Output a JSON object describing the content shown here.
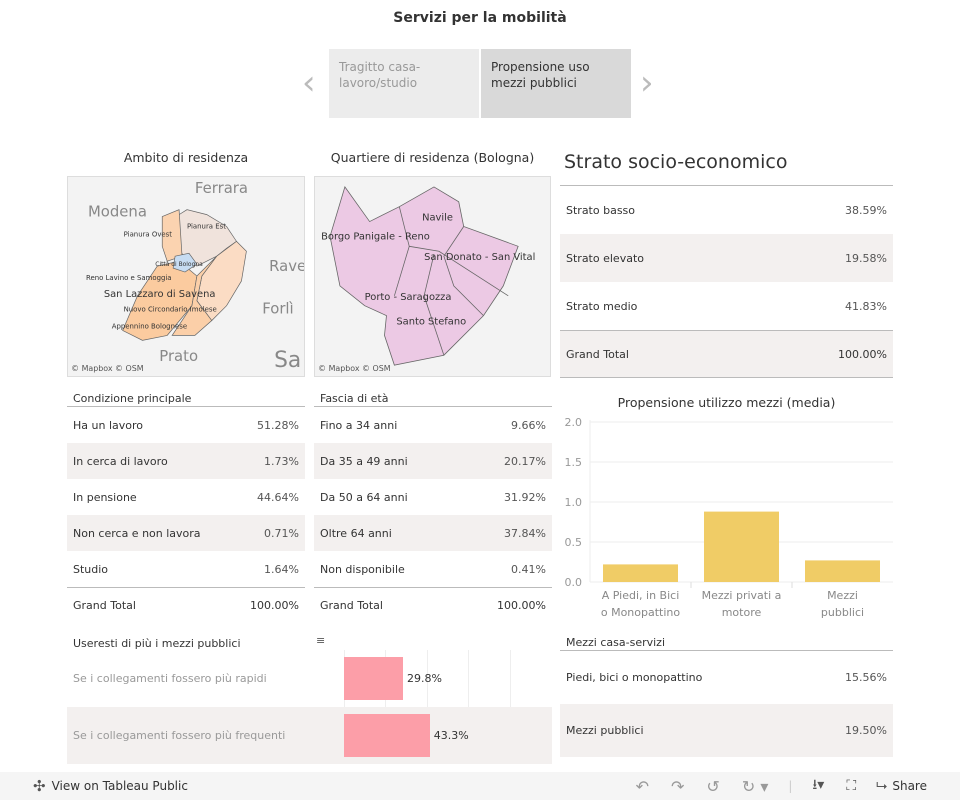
{
  "title": "Servizi per la mobilità",
  "nav": {
    "items": [
      {
        "label": "Tragitto casa-lavoro/studio",
        "active": false
      },
      {
        "label": "Propensione uso mezzi pubblici",
        "active": true
      }
    ]
  },
  "map_ambito": {
    "title": "Ambito di residenza",
    "cities": [
      "Ferrara",
      "Modena",
      "Rave",
      "Forlì",
      "Prato",
      "Sa"
    ],
    "areas": [
      "Pianura Ovest",
      "Pianura Est",
      "Città di Bologna",
      "Reno Lavino e Samoggia",
      "San Lazzaro di Savena",
      "Nuovo Circondario Imolese",
      "Appennino Bolognese"
    ],
    "credits": "© Mapbox  © OSM"
  },
  "map_quartiere": {
    "title": "Quartiere di residenza (Bologna)",
    "areas": [
      "Navile",
      "Borgo Panigale - Reno",
      "San Donato - San Vital",
      "Porto - Saragozza",
      "Santo Stefano"
    ],
    "credits": "© Mapbox  © OSM"
  },
  "strato": {
    "title": "Strato socio-economico",
    "rows": [
      {
        "label": "Strato basso",
        "value": "38.59%"
      },
      {
        "label": "Strato elevato",
        "value": "19.58%"
      },
      {
        "label": "Strato medio",
        "value": "41.83%"
      }
    ],
    "total": {
      "label": "Grand Total",
      "value": "100.00%"
    }
  },
  "condizione": {
    "header": "Condizione principale",
    "rows": [
      {
        "label": "Ha un lavoro",
        "value": "51.28%"
      },
      {
        "label": "In cerca di lavoro",
        "value": "1.73%"
      },
      {
        "label": "In pensione",
        "value": "44.64%"
      },
      {
        "label": "Non cerca e non lavora",
        "value": "0.71%"
      },
      {
        "label": "Studio",
        "value": "1.64%"
      }
    ],
    "total": {
      "label": "Grand Total",
      "value": "100.00%"
    }
  },
  "eta": {
    "header": "Fascia di età",
    "rows": [
      {
        "label": "Fino a 34 anni",
        "value": "9.66%"
      },
      {
        "label": "Da 35 a 49 anni",
        "value": "20.17%"
      },
      {
        "label": "Da 50 a 64 anni",
        "value": "31.92%"
      },
      {
        "label": "Oltre 64 anni",
        "value": "37.84%"
      },
      {
        "label": "Non disponibile",
        "value": "0.41%"
      }
    ],
    "total": {
      "label": "Grand Total",
      "value": "100.00%"
    }
  },
  "chart_data": [
    {
      "type": "bar",
      "title": "Propensione utilizzo mezzi (media)",
      "categories": [
        "A Piedi, in Bici o Monopattino",
        "Mezzi privati a motore",
        "Mezzi pubblici"
      ],
      "values": [
        0.22,
        0.88,
        0.27
      ],
      "ylim": [
        0,
        2.0
      ],
      "yticks": [
        "0.0",
        "0.5",
        "1.0",
        "1.5",
        "2.0"
      ],
      "color": "#f0cc66",
      "grid": true
    },
    {
      "type": "bar",
      "title": "Useresti di più i mezzi pubblici",
      "categories": [
        "Se i collegamenti fossero più rapidi",
        "Se i collegamenti fossero più frequenti"
      ],
      "values": [
        29.8,
        43.3
      ],
      "labels": [
        "29.8%",
        "43.3%"
      ],
      "color": "#fc9ea8",
      "orientation": "horizontal"
    }
  ],
  "mezzi_servizi": {
    "header": "Mezzi casa-servizi",
    "rows": [
      {
        "label": "Piedi, bici o monopattino",
        "value": "15.56%"
      },
      {
        "label": "Mezzi pubblici",
        "value": "19.50%"
      }
    ]
  },
  "footer": {
    "view_label": "View on Tableau Public",
    "share_label": "Share"
  }
}
